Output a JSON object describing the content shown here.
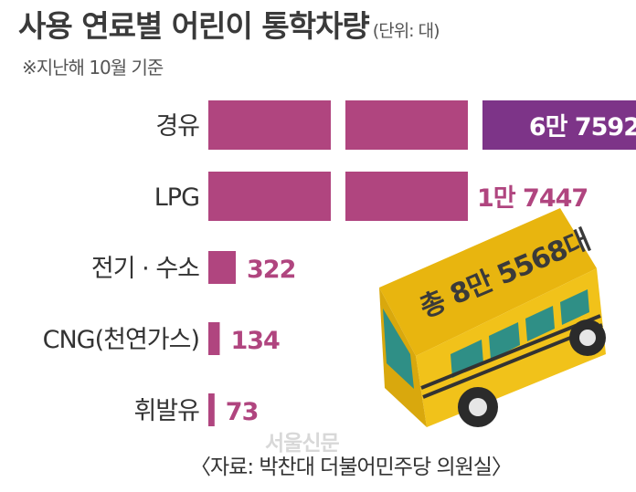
{
  "header": {
    "title": "사용 연료별 어린이 통학차량",
    "unit": "(단위: 대)",
    "note": "※지난해 10월 기준"
  },
  "colors": {
    "bar": "#b0457f",
    "bar_highlight": "#7d3488",
    "value_text": "#b0457f",
    "bus_body": "#f1c21a"
  },
  "chart_data": {
    "type": "bar",
    "orientation": "horizontal",
    "title": "사용 연료별 어린이 통학차량",
    "categories": [
      "경유",
      "LPG",
      "전기 · 수소",
      "CNG(천연가스)",
      "휘발유"
    ],
    "values": [
      67592,
      17447,
      322,
      134,
      73
    ],
    "value_labels": [
      "6만 7592",
      "1만 7447",
      "322",
      "134",
      "73"
    ],
    "unit": "대",
    "axis_break": true,
    "grid": false,
    "legend": "none"
  },
  "callout": {
    "total": "총 8만 5568대"
  },
  "footer": {
    "watermark": "서울신문",
    "source": "〈자료: 박찬대 더불어민주당 의원실〉"
  }
}
